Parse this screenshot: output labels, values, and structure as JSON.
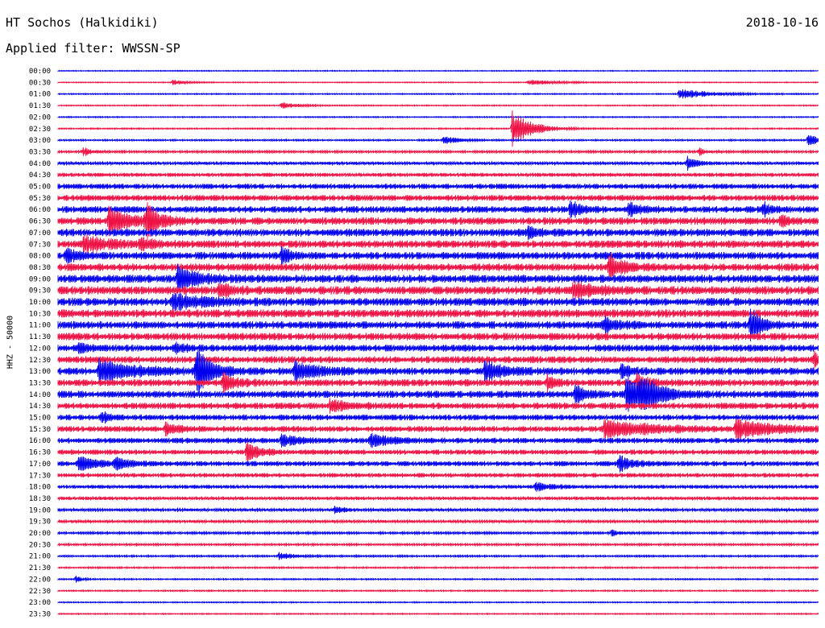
{
  "header": {
    "station": "HT Sochos (Halkidiki)",
    "date": "2018-10-16",
    "filter": "Applied filter: WWSSN-SP"
  },
  "chart_data": {
    "type": "line",
    "ylabel": "HHZ - 50000",
    "row_labels": [
      "00:00",
      "00:30",
      "01:00",
      "01:30",
      "02:00",
      "02:30",
      "03:00",
      "03:30",
      "04:00",
      "04:30",
      "05:00",
      "05:30",
      "06:00",
      "06:30",
      "07:00",
      "07:30",
      "08:00",
      "08:30",
      "09:00",
      "09:30",
      "10:00",
      "10:30",
      "11:00",
      "11:30",
      "12:00",
      "12:30",
      "13:00",
      "13:30",
      "14:00",
      "14:30",
      "15:00",
      "15:30",
      "16:00",
      "16:30",
      "17:00",
      "17:30",
      "18:00",
      "18:30",
      "19:00",
      "19:30",
      "20:00",
      "20:30",
      "21:00",
      "21:30",
      "22:00",
      "22:30",
      "23:00",
      "23:30"
    ],
    "trace_colors": [
      "#0000ee",
      "#ee1144"
    ],
    "noise_level": [
      0.4,
      0.4,
      0.5,
      0.5,
      0.5,
      0.6,
      0.7,
      1.0,
      1.4,
      1.7,
      2.3,
      2.6,
      2.9,
      3.2,
      3.3,
      3.3,
      3.3,
      3.3,
      3.5,
      3.6,
      3.5,
      3.5,
      3.3,
      3.2,
      3.0,
      3.0,
      3.2,
      3.0,
      3.1,
      2.8,
      2.5,
      2.5,
      2.4,
      2.2,
      2.2,
      1.9,
      1.6,
      1.5,
      1.3,
      1.2,
      1.0,
      0.9,
      0.8,
      0.7,
      0.6,
      0.6,
      0.5,
      0.5
    ],
    "events": [
      {
        "row": 1,
        "minute": 4.5,
        "amplitude": 3,
        "duration": 1
      },
      {
        "row": 1,
        "minute": 18.5,
        "amplitude": 3,
        "duration": 2
      },
      {
        "row": 2,
        "minute": 24.5,
        "amplitude": 6,
        "duration": 2
      },
      {
        "row": 3,
        "minute": 8.8,
        "amplitude": 4,
        "duration": 1
      },
      {
        "row": 5,
        "minute": 17.9,
        "amplitude": 22,
        "duration": 1.2
      },
      {
        "row": 6,
        "minute": 15.2,
        "amplitude": 6,
        "duration": 0.8
      },
      {
        "row": 6,
        "minute": 29.6,
        "amplitude": 10,
        "duration": 0.5
      },
      {
        "row": 7,
        "minute": 1.0,
        "amplitude": 5,
        "duration": 0.5
      },
      {
        "row": 7,
        "minute": 25.3,
        "amplitude": 5,
        "duration": 0.4
      },
      {
        "row": 8,
        "minute": 24.8,
        "amplitude": 9,
        "duration": 0.6
      },
      {
        "row": 12,
        "minute": 20.2,
        "amplitude": 11,
        "duration": 0.6
      },
      {
        "row": 12,
        "minute": 22.5,
        "amplitude": 7,
        "duration": 0.8
      },
      {
        "row": 12,
        "minute": 27.8,
        "amplitude": 11,
        "duration": 0.4
      },
      {
        "row": 13,
        "minute": 2.0,
        "amplitude": 16,
        "duration": 1.2
      },
      {
        "row": 13,
        "minute": 3.5,
        "amplitude": 12,
        "duration": 0.5
      },
      {
        "row": 13,
        "minute": 3.4,
        "amplitude": 12,
        "duration": 1.0
      },
      {
        "row": 13,
        "minute": 28.5,
        "amplitude": 8,
        "duration": 0.4
      },
      {
        "row": 14,
        "minute": 18.5,
        "amplitude": 8,
        "duration": 0.6
      },
      {
        "row": 15,
        "minute": 1.0,
        "amplitude": 9,
        "duration": 1.5
      },
      {
        "row": 15,
        "minute": 3.2,
        "amplitude": 8,
        "duration": 0.8
      },
      {
        "row": 16,
        "minute": 0.3,
        "amplitude": 10,
        "duration": 0.6
      },
      {
        "row": 16,
        "minute": 8.8,
        "amplitude": 10,
        "duration": 0.5
      },
      {
        "row": 17,
        "minute": 21.7,
        "amplitude": 16,
        "duration": 0.8
      },
      {
        "row": 18,
        "minute": 4.7,
        "amplitude": 14,
        "duration": 1.2
      },
      {
        "row": 19,
        "minute": 6.3,
        "amplitude": 8,
        "duration": 0.8
      },
      {
        "row": 19,
        "minute": 20.3,
        "amplitude": 8,
        "duration": 1.5
      },
      {
        "row": 20,
        "minute": 4.5,
        "amplitude": 8,
        "duration": 2.0
      },
      {
        "row": 22,
        "minute": 21.5,
        "amplitude": 10,
        "duration": 0.8
      },
      {
        "row": 22,
        "minute": 27.3,
        "amplitude": 22,
        "duration": 0.6
      },
      {
        "row": 24,
        "minute": 0.8,
        "amplitude": 6,
        "duration": 0.6
      },
      {
        "row": 24,
        "minute": 4.6,
        "amplitude": 6,
        "duration": 0.6
      },
      {
        "row": 25,
        "minute": 29.8,
        "amplitude": 10,
        "duration": 0.5
      },
      {
        "row": 26,
        "minute": 1.6,
        "amplitude": 13,
        "duration": 2.2
      },
      {
        "row": 26,
        "minute": 5.5,
        "amplitude": 12,
        "duration": 1.0
      },
      {
        "row": 26,
        "minute": 5.4,
        "amplitude": 25,
        "duration": 0.7
      },
      {
        "row": 26,
        "minute": 9.3,
        "amplitude": 10,
        "duration": 1.5
      },
      {
        "row": 26,
        "minute": 16.8,
        "amplitude": 12,
        "duration": 1.2
      },
      {
        "row": 26,
        "minute": 22.2,
        "amplitude": 10,
        "duration": 0.5
      },
      {
        "row": 27,
        "minute": 6.5,
        "amplitude": 11,
        "duration": 0.8
      },
      {
        "row": 27,
        "minute": 19.3,
        "amplitude": 9,
        "duration": 0.5
      },
      {
        "row": 27,
        "minute": 22.8,
        "amplitude": 9,
        "duration": 0.8
      },
      {
        "row": 28,
        "minute": 20.4,
        "amplitude": 11,
        "duration": 0.6
      },
      {
        "row": 28,
        "minute": 22.4,
        "amplitude": 20,
        "duration": 1.6
      },
      {
        "row": 28,
        "minute": 23.0,
        "amplitude": 15,
        "duration": 0.8
      },
      {
        "row": 29,
        "minute": 10.7,
        "amplitude": 8,
        "duration": 1.0
      },
      {
        "row": 30,
        "minute": 1.7,
        "amplitude": 6,
        "duration": 0.6
      },
      {
        "row": 31,
        "minute": 4.2,
        "amplitude": 7,
        "duration": 0.8
      },
      {
        "row": 31,
        "minute": 21.5,
        "amplitude": 10,
        "duration": 3.0
      },
      {
        "row": 31,
        "minute": 26.7,
        "amplitude": 10,
        "duration": 2.5
      },
      {
        "row": 32,
        "minute": 8.8,
        "amplitude": 7,
        "duration": 1.0
      },
      {
        "row": 32,
        "minute": 12.3,
        "amplitude": 8,
        "duration": 1.2
      },
      {
        "row": 33,
        "minute": 7.4,
        "amplitude": 13,
        "duration": 0.8
      },
      {
        "row": 34,
        "minute": 0.8,
        "amplitude": 8,
        "duration": 1.2
      },
      {
        "row": 34,
        "minute": 2.2,
        "amplitude": 7,
        "duration": 0.8
      },
      {
        "row": 34,
        "minute": 22.1,
        "amplitude": 8,
        "duration": 1.0
      },
      {
        "row": 36,
        "minute": 18.8,
        "amplitude": 5,
        "duration": 1.0
      },
      {
        "row": 38,
        "minute": 10.9,
        "amplitude": 4,
        "duration": 0.6
      },
      {
        "row": 40,
        "minute": 21.8,
        "amplitude": 4,
        "duration": 0.5
      },
      {
        "row": 42,
        "minute": 8.7,
        "amplitude": 4,
        "duration": 1.0
      },
      {
        "row": 44,
        "minute": 0.7,
        "amplitude": 4,
        "duration": 0.4
      }
    ]
  }
}
